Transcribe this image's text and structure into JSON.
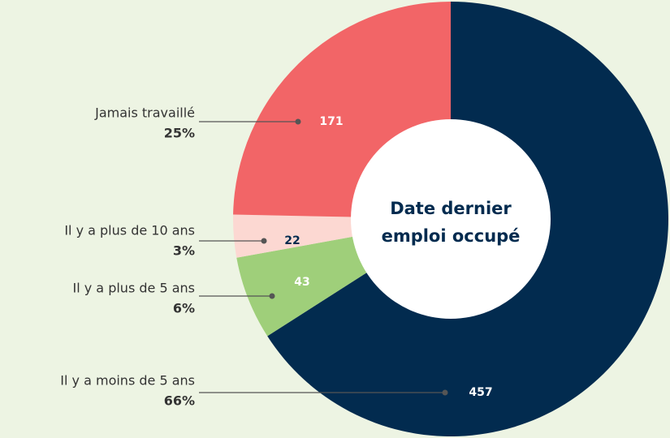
{
  "chart_data": {
    "type": "donut",
    "title": "Date dernier emploi occupé",
    "categories": [
      "Il y a moins de 5 ans",
      "Il y a plus de 5 ans",
      "Il y a plus de 10 ans",
      "Jamais travaillé"
    ],
    "values": [
      457,
      43,
      22,
      171
    ],
    "percent_labels": [
      "66%",
      "6%",
      "3%",
      "25%"
    ],
    "colors": [
      "#022b4f",
      "#9fcf7a",
      "#fcd8d2",
      "#f26567"
    ],
    "value_label_colors": [
      "#ffffff",
      "#ffffff",
      "#022b4f",
      "#ffffff"
    ]
  }
}
